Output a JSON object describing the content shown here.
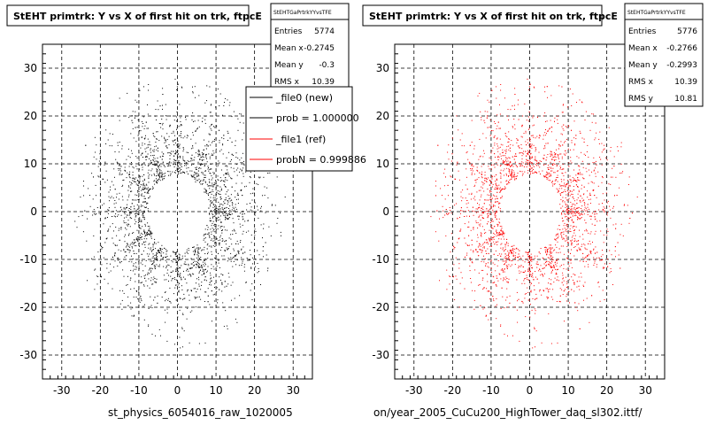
{
  "chart_data": [
    {
      "type": "scatter",
      "title": "StEHT primtrk: Y vs X of first hit on trk, ftpcE",
      "xlim": [
        -35,
        35
      ],
      "ylim": [
        -35,
        35
      ],
      "xticks": [
        -30,
        -20,
        -10,
        0,
        10,
        20,
        30
      ],
      "yticks": [
        -30,
        -20,
        -10,
        0,
        10,
        20,
        30
      ],
      "grid": true,
      "color": "#000000",
      "stats": {
        "header": "StEHTGaPrtrkYYvsTFE",
        "rows": [
          {
            "label": "Entries",
            "value": "5774"
          },
          {
            "label": "Mean x",
            "value": "-0.2745"
          },
          {
            "label": "Mean y",
            "value": "-0.3"
          },
          {
            "label": "RMS x",
            "value": "10.39"
          }
        ]
      },
      "legend": {
        "placement": "top-right",
        "entries": [
          {
            "label": "_file0 (new)",
            "color": "#000000"
          },
          {
            "label": "prob = 1.000000",
            "color": "#000000"
          },
          {
            "label": "_file1 (ref)",
            "color": "#ff0000"
          },
          {
            "label": "probN = 0.999886",
            "color": "#ff0000"
          }
        ]
      },
      "file_label": "st_physics_6054016_raw_1020005"
    },
    {
      "type": "scatter",
      "title": "StEHT primtrk: Y vs X of first hit on trk, ftpcE",
      "xlim": [
        -35,
        35
      ],
      "ylim": [
        -35,
        35
      ],
      "xticks": [
        -30,
        -20,
        -10,
        0,
        10,
        20,
        30
      ],
      "yticks": [
        -30,
        -20,
        -10,
        0,
        10,
        20,
        30
      ],
      "grid": true,
      "color": "#ff0000",
      "stats": {
        "header": "StEHTGaPrtrkYYvsTFE",
        "rows": [
          {
            "label": "Entries",
            "value": "5776"
          },
          {
            "label": "Mean x",
            "value": "-0.2766"
          },
          {
            "label": "Mean y",
            "value": "-0.2993"
          },
          {
            "label": "RMS x",
            "value": "10.39"
          },
          {
            "label": "RMS y",
            "value": "10.81"
          }
        ]
      },
      "file_label": "on/year_2005_CuCu200_HighTower_daq_sl302.ittf/"
    }
  ]
}
